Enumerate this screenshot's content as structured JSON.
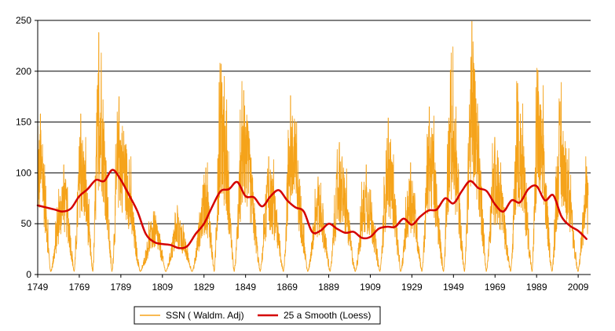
{
  "chart_data": {
    "type": "line",
    "title": "",
    "xlabel": "",
    "ylabel": "",
    "xlim": [
      1749,
      2015
    ],
    "ylim": [
      0,
      250
    ],
    "grid": true,
    "legend_position": "bottom-center",
    "x_ticks": [
      1749,
      1769,
      1789,
      1809,
      1829,
      1849,
      1869,
      1889,
      1909,
      1929,
      1949,
      1969,
      1989,
      2009
    ],
    "y_ticks": [
      0,
      50,
      100,
      150,
      200,
      250
    ],
    "colors": {
      "ssn": "#F5A31A",
      "smooth": "#D40000",
      "grid": "#000000"
    },
    "ssn_cycle_peaks": [
      [
        1750.3,
        158
      ],
      [
        1761.5,
        108
      ],
      [
        1769.7,
        158
      ],
      [
        1778.4,
        238
      ],
      [
        1788.1,
        175
      ],
      [
        1805.2,
        62
      ],
      [
        1816.4,
        60
      ],
      [
        1829.9,
        105
      ],
      [
        1837.2,
        207
      ],
      [
        1848.1,
        181
      ],
      [
        1860.1,
        116
      ],
      [
        1870.6,
        176
      ],
      [
        1883.9,
        96
      ],
      [
        1894.1,
        130
      ],
      [
        1907.0,
        108
      ],
      [
        1917.6,
        154
      ],
      [
        1928.4,
        110
      ],
      [
        1937.4,
        165
      ],
      [
        1947.5,
        201
      ],
      [
        1957.9,
        249
      ],
      [
        1968.9,
        135
      ],
      [
        1979.9,
        188
      ],
      [
        1989.6,
        201
      ],
      [
        2000.3,
        170
      ],
      [
        2013.0,
        106
      ]
    ],
    "ssn_cycle_minima": [
      1755.2,
      1766.5,
      1775.5,
      1784.7,
      1798.3,
      1810.6,
      1823.3,
      1833.9,
      1843.5,
      1856.0,
      1867.2,
      1878.9,
      1889.6,
      1901.7,
      1913.6,
      1923.6,
      1933.8,
      1944.2,
      1954.3,
      1964.8,
      1976.5,
      1986.8,
      1996.4,
      2008.9
    ],
    "series": [
      {
        "name": "SSN ( Waldm. Adj)",
        "kind": "monthly-ssn",
        "values": []
      },
      {
        "name": "25 a Smooth (Loess)",
        "kind": "smooth",
        "x": [
          1749,
          1753,
          1757,
          1761,
          1765,
          1769,
          1773,
          1777,
          1781,
          1785,
          1789,
          1793,
          1797,
          1801,
          1805,
          1809,
          1813,
          1817,
          1821,
          1825,
          1829,
          1833,
          1837,
          1841,
          1845,
          1849,
          1853,
          1857,
          1861,
          1865,
          1869,
          1873,
          1877,
          1881,
          1885,
          1889,
          1893,
          1897,
          1901,
          1905,
          1909,
          1913,
          1917,
          1921,
          1925,
          1929,
          1933,
          1937,
          1941,
          1945,
          1949,
          1953,
          1957,
          1961,
          1965,
          1969,
          1973,
          1977,
          1981,
          1985,
          1989,
          1993,
          1997,
          2001,
          2005,
          2009,
          2013
        ],
        "values": [
          68,
          66,
          64,
          62,
          65,
          77,
          84,
          93,
          92,
          103,
          93,
          78,
          62,
          40,
          32,
          30,
          29,
          26,
          28,
          40,
          50,
          67,
          82,
          84,
          91,
          77,
          76,
          67,
          77,
          83,
          73,
          66,
          62,
          42,
          43,
          50,
          45,
          41,
          42,
          36,
          37,
          45,
          47,
          47,
          55,
          49,
          57,
          63,
          64,
          75,
          70,
          82,
          92,
          85,
          82,
          69,
          62,
          73,
          71,
          84,
          87,
          73,
          78,
          57,
          48,
          43,
          35
        ]
      }
    ]
  }
}
